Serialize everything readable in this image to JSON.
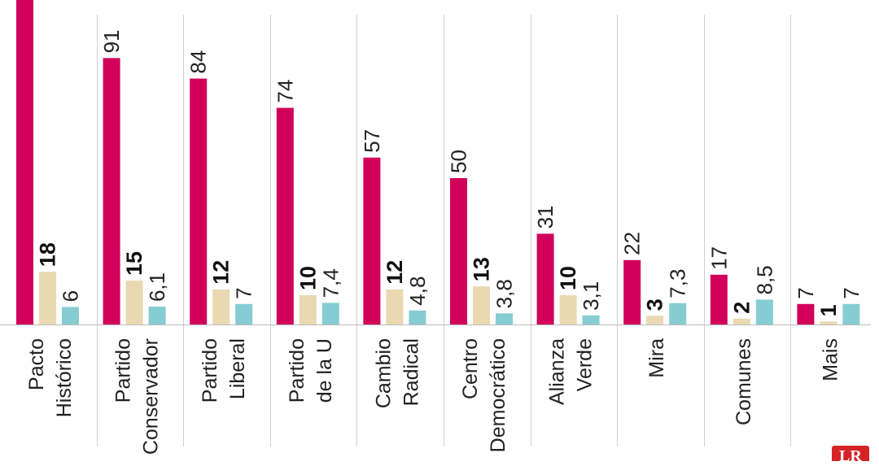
{
  "chart_data": {
    "type": "bar",
    "categories": [
      [
        "Pacto",
        "Histórico"
      ],
      [
        "Partido",
        "Conservador"
      ],
      [
        "Partido",
        "Liberal"
      ],
      [
        "Partido",
        "de la U"
      ],
      [
        "Cambio",
        "Radical"
      ],
      [
        "Centro",
        "Democrático"
      ],
      [
        "Alianza",
        "Verde"
      ],
      [
        "Mira"
      ],
      [
        "Comunes"
      ],
      [
        "Mais"
      ]
    ],
    "series": [
      {
        "values": [
          null,
          91,
          84,
          74,
          57,
          50,
          31,
          22,
          17,
          7
        ],
        "labels": [
          "",
          "91",
          "84",
          "74",
          "57",
          "50",
          "31",
          "22",
          "17",
          "7"
        ],
        "bold": false
      },
      {
        "values": [
          18,
          15,
          12,
          10,
          12,
          13,
          10,
          3,
          2,
          1
        ],
        "labels": [
          "18",
          "15",
          "12",
          "10",
          "12",
          "13",
          "10",
          "3",
          "2",
          "1"
        ],
        "bold": true
      },
      {
        "values": [
          6,
          6.1,
          7,
          7.4,
          4.8,
          3.8,
          3.1,
          7.3,
          8.5,
          7
        ],
        "labels": [
          "6",
          "6,1",
          "7",
          "7,4",
          "4,8",
          "3,8",
          "3,1",
          "7,3",
          "8,5",
          "7"
        ],
        "bold": false
      }
    ],
    "ylim": [
      0,
      100
    ],
    "grid": false,
    "legend": "none"
  },
  "colors": {
    "series": [
      "#d1005a",
      "#ead8b2",
      "#86cdd3"
    ],
    "separator": "#d0d0d0",
    "baseline": "#bbbbbb",
    "logo": "#d62326"
  },
  "logo": {
    "text": "LR"
  }
}
